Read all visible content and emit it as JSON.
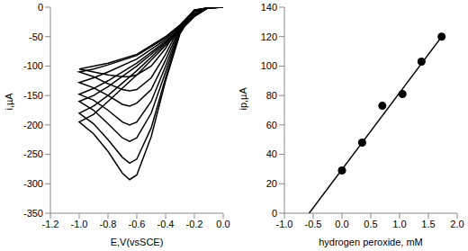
{
  "chart_data": [
    {
      "type": "line",
      "x_label": "E,V(vsSCE)",
      "y_label": "i,µA",
      "x": [
        0,
        -0.1,
        -0.2,
        -0.3,
        -0.4,
        -0.5,
        -0.6,
        -0.65,
        -0.7,
        -0.8,
        -0.9,
        -1.0,
        -0.9,
        -0.8,
        -0.6,
        -0.4,
        -0.2,
        -0.1,
        0
      ],
      "series": [
        {
          "color": "#000000",
          "values": [
            0,
            -1,
            -5,
            -30,
            -70,
            -100,
            -115,
            -118,
            -118,
            -115,
            -110,
            -105,
            -100,
            -95,
            -80,
            -50,
            -10,
            0,
            0
          ]
        },
        {
          "color": "#000000",
          "values": [
            0,
            -1,
            -5,
            -32,
            -80,
            -120,
            -140,
            -142,
            -140,
            -130,
            -118,
            -110,
            -105,
            -98,
            -82,
            -52,
            -12,
            0,
            0
          ]
        },
        {
          "color": "#000000",
          "values": [
            0,
            -1,
            -5,
            -35,
            -90,
            -140,
            -163,
            -168,
            -165,
            -150,
            -137,
            -128,
            -120,
            -110,
            -88,
            -55,
            -13,
            0,
            0
          ]
        },
        {
          "color": "#000000",
          "values": [
            0,
            -1,
            -6,
            -38,
            -100,
            -160,
            -195,
            -200,
            -195,
            -175,
            -158,
            -148,
            -138,
            -125,
            -95,
            -58,
            -14,
            0,
            0
          ]
        },
        {
          "color": "#000000",
          "values": [
            0,
            -1,
            -6,
            -40,
            -110,
            -180,
            -222,
            -228,
            -222,
            -198,
            -175,
            -160,
            -150,
            -135,
            -100,
            -60,
            -15,
            0,
            0
          ]
        },
        {
          "color": "#000000",
          "values": [
            0,
            -1,
            -7,
            -42,
            -120,
            -205,
            -258,
            -265,
            -255,
            -225,
            -198,
            -180,
            -168,
            -150,
            -108,
            -62,
            -15,
            0,
            0
          ]
        },
        {
          "color": "#000000",
          "values": [
            0,
            -1,
            -7,
            -45,
            -125,
            -220,
            -285,
            -293,
            -282,
            -245,
            -215,
            -195,
            -182,
            -160,
            -115,
            -65,
            -16,
            0,
            0
          ]
        }
      ],
      "xlim": [
        -1.2,
        0
      ],
      "xticks": [
        -1.2,
        {
          "value": -1,
          "label": "-1.0"
        },
        -0.8,
        -0.6,
        -0.4,
        -0.2,
        {
          "value": 0,
          "label": "0.0"
        }
      ],
      "ylim": [
        -350,
        0
      ],
      "yticks": [
        -350,
        -300,
        -250,
        -200,
        -150,
        -100,
        -50,
        0
      ]
    },
    {
      "type": "scatter",
      "x_label": "hydrogen peroxide, mM",
      "y_label": "ip,µA",
      "series": [
        {
          "type": "scatter",
          "marker": "circle",
          "color": "#000000",
          "x": [
            0,
            0.35,
            0.7,
            1.05,
            1.38,
            1.73
          ],
          "values": [
            29,
            48,
            73,
            81,
            103,
            120
          ]
        },
        {
          "type": "line",
          "color": "#000000",
          "x": [
            -0.57,
            1.75
          ],
          "values": [
            0,
            121
          ]
        }
      ],
      "xlim": [
        -1,
        2
      ],
      "xticks": [
        {
          "value": -1,
          "label": "-1.0"
        },
        -0.5,
        {
          "value": 0,
          "label": "0.0"
        },
        0.5,
        {
          "value": 1,
          "label": "1.0"
        },
        1.5,
        {
          "value": 2,
          "label": "2.0"
        }
      ],
      "ylim": [
        0,
        140
      ],
      "yticks": [
        0,
        20,
        40,
        60,
        80,
        100,
        120,
        140
      ]
    }
  ]
}
